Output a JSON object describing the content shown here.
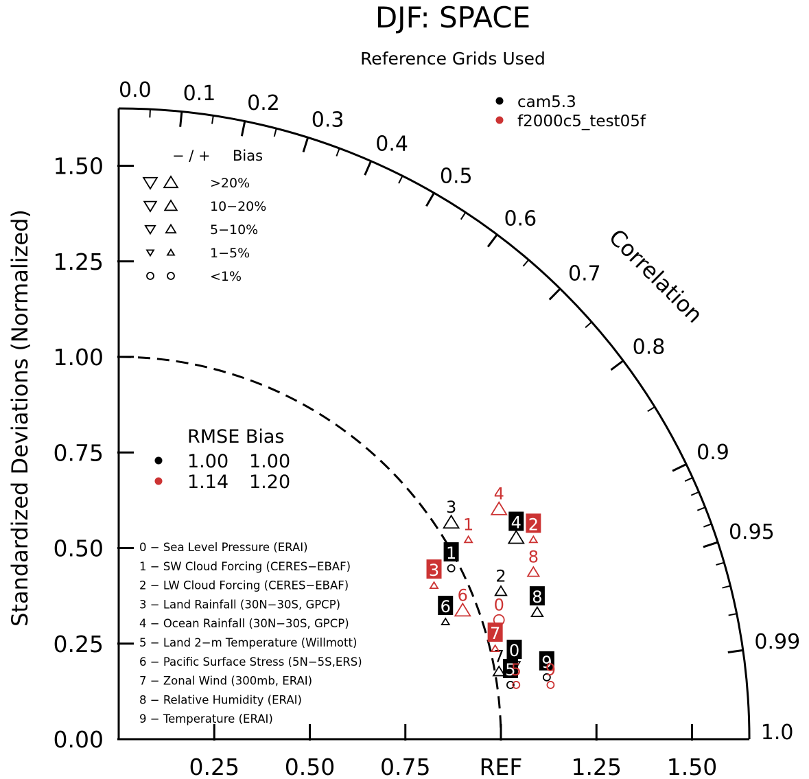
{
  "chart_data": {
    "type": "taylor",
    "title": "DJF: SPACE",
    "subtitle": "Reference Grids Used",
    "ylabel": "Standardized Deviations (Normalized)",
    "xlabel_ref": "REF",
    "correlation_label": "Correlation",
    "std_range": [
      0,
      1.65
    ],
    "std_ticks": [
      "0.00",
      "0.25",
      "0.50",
      "0.75",
      "1.00",
      "1.25",
      "1.50"
    ],
    "x_ticks": [
      "0.25",
      "0.50",
      "0.75",
      "REF",
      "1.25",
      "1.50"
    ],
    "corr_ticks": [
      "0.0",
      "0.1",
      "0.2",
      "0.3",
      "0.4",
      "0.5",
      "0.6",
      "0.7",
      "0.8",
      "0.9",
      "0.95",
      "0.99",
      "1.0"
    ],
    "series": [
      {
        "name": "cam5.3",
        "color": "#000000"
      },
      {
        "name": "f2000c5_test05f",
        "color": "#cc3333"
      }
    ],
    "bias_legend": {
      "header_signs": "−  /  +",
      "header_label": "Bias",
      "rows": [
        ">20%",
        "10−20%",
        "5−10%",
        "1−5%",
        "<1%"
      ]
    },
    "rmse_legend": {
      "header": "RMSE Bias",
      "rows": [
        {
          "rmse": "1.00",
          "bias": "1.00",
          "color": "#000000"
        },
        {
          "rmse": "1.14",
          "bias": "1.20",
          "color": "#cc3333"
        }
      ]
    },
    "variables": [
      "0 − Sea Level Pressure (ERAI)",
      "1 − SW Cloud Forcing (CERES−EBAF)",
      "2 − LW Cloud Forcing (CERES−EBAF)",
      "3 − Land Rainfall (30N−30S, GPCP)",
      "4 − Ocean Rainfall (30N−30S, GPCP)",
      "5 − Land 2−m Temperature (Willmott)",
      "6 − Pacific Surface Stress (5N−5S,ERS)",
      "7 − Zonal Wind (300mb, ERAI)",
      "8 − Relative Humidity (ERAI)",
      "9 − Temperature (ERAI)"
    ],
    "points": [
      {
        "label": "0",
        "series": 0,
        "x": 1.035,
        "y": 0.235,
        "boxed": true,
        "marker": "down",
        "msize": 2
      },
      {
        "label": "1",
        "series": 0,
        "x": 0.87,
        "y": 0.49,
        "boxed": true,
        "marker": "circle",
        "msize": 1
      },
      {
        "label": "2",
        "series": 0,
        "x": 1.0,
        "y": 0.43,
        "boxed": false,
        "marker": "up",
        "msize": 2
      },
      {
        "label": "3",
        "series": 0,
        "x": 0.87,
        "y": 0.61,
        "boxed": false,
        "marker": "up",
        "msize": 3
      },
      {
        "label": "4",
        "series": 0,
        "x": 1.04,
        "y": 0.57,
        "boxed": true,
        "marker": "up",
        "msize": 3
      },
      {
        "label": "5",
        "series": 0,
        "x": 1.025,
        "y": 0.185,
        "boxed": true,
        "marker": "circle",
        "msize": 1
      },
      {
        "label": "6",
        "series": 0,
        "x": 0.855,
        "y": 0.35,
        "boxed": true,
        "marker": "up",
        "msize": 1
      },
      {
        "label": "7",
        "series": 0,
        "x": 0.995,
        "y": 0.22,
        "boxed": false,
        "marker": "up",
        "msize": 2
      },
      {
        "label": "8",
        "series": 0,
        "x": 1.095,
        "y": 0.375,
        "boxed": true,
        "marker": "up",
        "msize": 2
      },
      {
        "label": "9",
        "series": 0,
        "x": 1.12,
        "y": 0.205,
        "boxed": true,
        "marker": "circle",
        "msize": 1
      },
      {
        "label": "0",
        "series": 1,
        "x": 0.995,
        "y": 0.355,
        "boxed": false,
        "marker": "circle",
        "msize": 2
      },
      {
        "label": "1",
        "series": 1,
        "x": 0.915,
        "y": 0.565,
        "boxed": false,
        "marker": "up",
        "msize": 1
      },
      {
        "label": "2",
        "series": 1,
        "x": 1.085,
        "y": 0.565,
        "boxed": true,
        "marker": "up",
        "msize": 1
      },
      {
        "label": "3",
        "series": 1,
        "x": 0.825,
        "y": 0.445,
        "boxed": true,
        "marker": "up",
        "msize": 1
      },
      {
        "label": "4",
        "series": 1,
        "x": 0.995,
        "y": 0.645,
        "boxed": false,
        "marker": "up",
        "msize": 3
      },
      {
        "label": "5",
        "series": 1,
        "x": 1.04,
        "y": 0.185,
        "boxed": false,
        "marker": "circle",
        "msize": 1
      },
      {
        "label": "6",
        "series": 1,
        "x": 0.9,
        "y": 0.38,
        "boxed": false,
        "marker": "up",
        "msize": 3
      },
      {
        "label": "7",
        "series": 1,
        "x": 0.985,
        "y": 0.28,
        "boxed": true,
        "marker": "up",
        "msize": 1
      },
      {
        "label": "8",
        "series": 1,
        "x": 1.085,
        "y": 0.48,
        "boxed": false,
        "marker": "up",
        "msize": 2
      },
      {
        "label": "9",
        "series": 1,
        "x": 1.13,
        "y": 0.185,
        "boxed": false,
        "marker": "circle",
        "msize": 1
      }
    ]
  }
}
